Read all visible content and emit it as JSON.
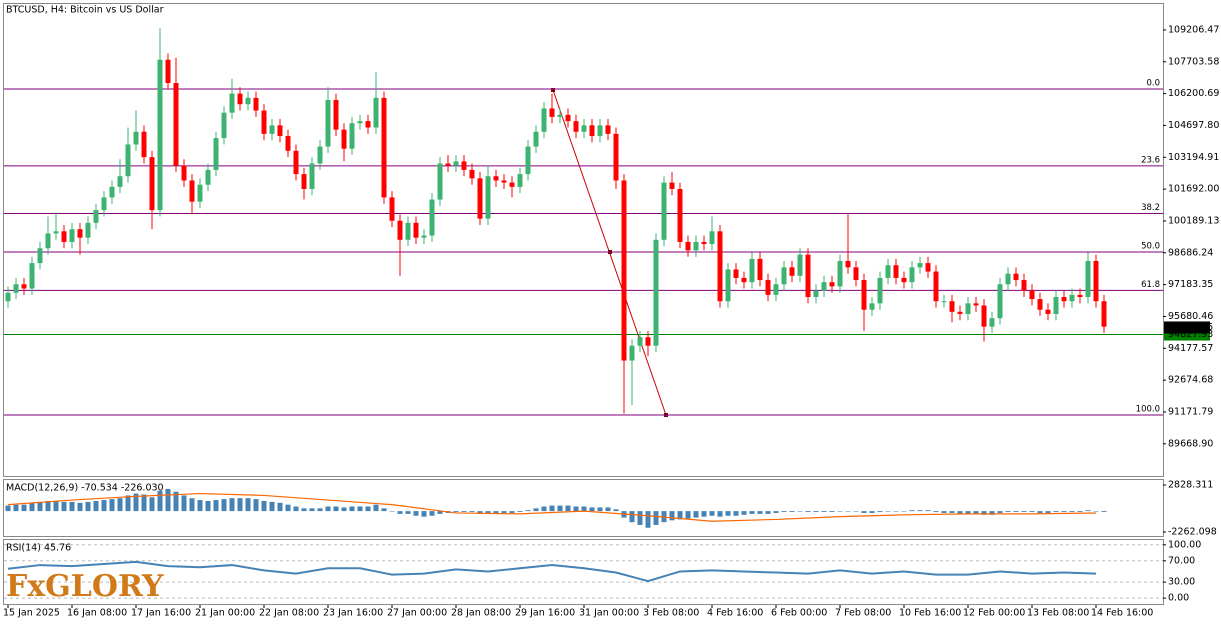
{
  "logo": "FxGLORY",
  "chart_data": [
    {
      "type": "candlestick",
      "title": "BTCUSD, H4:  Bitcoin vs US Dollar",
      "up_color": "#3cb371",
      "down_color": "#ff0000",
      "categories": [
        "15 Jan 2025",
        null,
        null,
        null,
        null,
        null,
        null,
        null,
        "16 Jan 08:00",
        null,
        null,
        null,
        null,
        null,
        null,
        null,
        "17 Jan 16:00",
        null,
        null,
        null,
        null,
        null,
        null,
        null,
        "21 Jan 00:00",
        null,
        null,
        null,
        null,
        null,
        null,
        null,
        "22 Jan 08:00",
        null,
        null,
        null,
        null,
        null,
        null,
        null,
        "23 Jan 16:00",
        null,
        null,
        null,
        null,
        null,
        null,
        null,
        "27 Jan 00:00",
        null,
        null,
        null,
        null,
        null,
        null,
        null,
        "28 Jan 08:00",
        null,
        null,
        null,
        null,
        null,
        null,
        null,
        "29 Jan 16:00",
        null,
        null,
        null,
        null,
        null,
        null,
        null,
        "31 Jan 00:00",
        null,
        null,
        null,
        null,
        null,
        null,
        null,
        "3 Feb 08:00",
        null,
        null,
        null,
        null,
        null,
        null,
        null,
        "4 Feb 16:00",
        null,
        null,
        null,
        null,
        null,
        null,
        null,
        "6 Feb 00:00",
        null,
        null,
        null,
        null,
        null,
        null,
        null,
        "7 Feb 08:00",
        null,
        null,
        null,
        null,
        null,
        null,
        null,
        "10 Feb 16:00",
        null,
        null,
        null,
        null,
        null,
        null,
        null,
        "12 Feb 00:00",
        null,
        null,
        null,
        null,
        null,
        null,
        null,
        "13 Feb 08:00",
        null,
        null,
        null,
        null,
        null,
        null,
        null,
        "14 Feb 16:00",
        null
      ],
      "open": [
        96400,
        96800,
        97200,
        97000,
        98200,
        98900,
        99600,
        99700,
        99200,
        99800,
        99400,
        100100,
        100700,
        101300,
        101800,
        102300,
        103800,
        104400,
        103200,
        100700,
        107800,
        106700,
        102800,
        102100,
        101100,
        101900,
        102600,
        104100,
        105300,
        106200,
        105700,
        106000,
        105400,
        104300,
        104700,
        104200,
        103500,
        102400,
        101700,
        102900,
        103700,
        105900,
        104500,
        103600,
        104800,
        104900,
        104600,
        106000,
        101300,
        100200,
        99300,
        100100,
        99400,
        99500,
        101200,
        102900,
        102800,
        103000,
        102600,
        102200,
        100300,
        102300,
        102100,
        102000,
        101800,
        102400,
        103700,
        104400,
        105500,
        105100,
        105200,
        104900,
        104400,
        104700,
        104200,
        104700,
        104300,
        102100,
        93600,
        94300,
        94700,
        94300,
        99300,
        102000,
        101700,
        99200,
        98800,
        99200,
        99100,
        99700,
        96400,
        97900,
        97500,
        97300,
        98400,
        97400,
        96700,
        97200,
        98000,
        97600,
        98600,
        96600,
        96900,
        97300,
        97100,
        98300,
        98000,
        97400,
        96000,
        96300,
        97500,
        98100,
        97500,
        97300,
        98000,
        98200,
        97800,
        96400,
        96400,
        95900,
        95800,
        96300,
        96200,
        95200,
        95600,
        97200,
        97700,
        97400,
        96900,
        96500,
        96000,
        95800,
        96600,
        96400,
        96700,
        96600,
        98300,
        96400
      ],
      "high": [
        97100,
        97500,
        97500,
        98500,
        99200,
        100400,
        100600,
        100000,
        100100,
        100100,
        100400,
        101000,
        101600,
        102100,
        103100,
        104600,
        105400,
        104700,
        103500,
        109300,
        108100,
        107900,
        103100,
        102400,
        102200,
        102900,
        104400,
        105600,
        106900,
        106500,
        106300,
        106300,
        105700,
        105000,
        105000,
        104500,
        103800,
        102700,
        103200,
        104000,
        106500,
        106200,
        104800,
        105100,
        105200,
        105200,
        107200,
        106300,
        101600,
        100500,
        100400,
        100400,
        99800,
        101500,
        103200,
        103300,
        103300,
        103300,
        102900,
        102500,
        102800,
        102600,
        102400,
        102300,
        102700,
        104000,
        104700,
        105800,
        106200,
        105500,
        105500,
        105200,
        105000,
        105000,
        105000,
        105000,
        104600,
        102400,
        94600,
        95000,
        95000,
        99600,
        102300,
        102500,
        102000,
        99500,
        99500,
        99500,
        100400,
        100000,
        98200,
        98200,
        97800,
        98700,
        98700,
        97700,
        97500,
        98300,
        98300,
        98900,
        98900,
        97200,
        97600,
        97600,
        98600,
        100500,
        98300,
        97700,
        96600,
        97800,
        98400,
        98400,
        97800,
        98300,
        98500,
        98500,
        98100,
        96700,
        96700,
        96200,
        96600,
        96600,
        96500,
        95900,
        97500,
        98000,
        98000,
        97700,
        97200,
        96800,
        96300,
        96900,
        96900,
        97000,
        97000,
        98700,
        98600,
        96700
      ],
      "low": [
        96100,
        96500,
        96700,
        96700,
        97900,
        98600,
        99300,
        98900,
        98900,
        98600,
        99100,
        99800,
        100400,
        101000,
        101500,
        102000,
        103500,
        102900,
        99800,
        100400,
        106400,
        102500,
        101800,
        100500,
        100800,
        101600,
        102300,
        103800,
        105000,
        105400,
        105400,
        105100,
        104000,
        104000,
        103900,
        103200,
        102100,
        101200,
        101400,
        102600,
        103400,
        104200,
        103000,
        103300,
        104500,
        104300,
        104300,
        101000,
        99900,
        97600,
        99000,
        99100,
        99100,
        99200,
        100900,
        102500,
        102500,
        102300,
        101900,
        100000,
        100000,
        101800,
        101700,
        101300,
        101500,
        102100,
        103400,
        104100,
        104800,
        104800,
        104600,
        104100,
        104100,
        103900,
        103900,
        104000,
        101700,
        91100,
        91500,
        94000,
        93800,
        94000,
        99000,
        101400,
        98900,
        98500,
        98500,
        98800,
        98800,
        96100,
        96100,
        97200,
        97000,
        97000,
        97100,
        96400,
        96400,
        96900,
        97300,
        97300,
        96300,
        96300,
        96600,
        96800,
        96800,
        97700,
        97100,
        95000,
        95700,
        96000,
        97200,
        97200,
        97000,
        97000,
        97700,
        97500,
        96100,
        96100,
        95400,
        95500,
        95500,
        95900,
        94500,
        94900,
        95300,
        96900,
        97100,
        96600,
        96200,
        95700,
        95500,
        95500,
        96100,
        96100,
        96300,
        96300,
        96100,
        94900
      ],
      "close": [
        96800,
        97200,
        97000,
        98200,
        98900,
        99600,
        99700,
        99200,
        99800,
        99400,
        100100,
        100700,
        101300,
        101800,
        102300,
        103800,
        104400,
        103200,
        100700,
        107800,
        106700,
        102800,
        102100,
        101100,
        101900,
        102600,
        104100,
        105300,
        106200,
        105700,
        106000,
        105400,
        104300,
        104700,
        104200,
        103500,
        102400,
        101700,
        102900,
        103700,
        105900,
        104500,
        103600,
        104800,
        104900,
        104600,
        106000,
        101300,
        100200,
        99300,
        100100,
        99400,
        99500,
        101200,
        102900,
        102800,
        103000,
        102600,
        102200,
        100300,
        102300,
        102100,
        102000,
        101800,
        102400,
        103700,
        104400,
        105500,
        105100,
        105200,
        104900,
        104400,
        104700,
        104200,
        104700,
        104300,
        102100,
        93600,
        94300,
        94700,
        94300,
        99300,
        102000,
        101700,
        99200,
        98800,
        99200,
        99100,
        99700,
        96400,
        97900,
        97500,
        97300,
        98400,
        97400,
        96700,
        97200,
        98000,
        97600,
        98600,
        96600,
        96900,
        97300,
        97100,
        98300,
        98000,
        97400,
        96000,
        96300,
        97500,
        98100,
        97500,
        97300,
        98000,
        98200,
        97800,
        96400,
        96400,
        95900,
        95800,
        96300,
        96200,
        95200,
        95600,
        97200,
        97700,
        97400,
        96900,
        96500,
        96000,
        95800,
        96600,
        96400,
        96700,
        96600,
        98300,
        96400,
        95200
      ],
      "ylim": [
        88150,
        110430
      ],
      "yticks": [
        {
          "value": 109206.47,
          "label": "109206.47"
        },
        {
          "value": 107703.58,
          "label": "107703.58"
        },
        {
          "value": 106200.69,
          "label": "106200.69"
        },
        {
          "value": 104697.8,
          "label": "104697.80"
        },
        {
          "value": 103194.91,
          "label": "103194.91"
        },
        {
          "value": 101692,
          "label": "101692.00"
        },
        {
          "value": 100189.13,
          "label": "100189.13"
        },
        {
          "value": 98686.24,
          "label": "98686.24"
        },
        {
          "value": 97183.35,
          "label": "97183.35"
        },
        {
          "value": 95680.46,
          "label": "95680.46"
        },
        {
          "value": 94177.57,
          "label": "94177.57"
        },
        {
          "value": 92674.68,
          "label": "92674.68"
        },
        {
          "value": 91171.79,
          "label": "91171.79"
        },
        {
          "value": 89668.9,
          "label": "89668.90"
        }
      ],
      "fib_color": "#800080",
      "fib_levels": [
        {
          "value": 106420,
          "label": "0.0"
        },
        {
          "value": 102790,
          "label": "23.6"
        },
        {
          "value": 100540,
          "label": "38.2"
        },
        {
          "value": 98725,
          "label": "50.0"
        },
        {
          "value": 96910,
          "label": "61.8"
        },
        {
          "value": 91030,
          "label": "100.0"
        }
      ],
      "support_line": {
        "value": 94827.93,
        "color": "#008000"
      },
      "last_price": 95160.95
    },
    {
      "type": "macd",
      "title": "MACD(12,26,9) -70.534 -226.030",
      "histogram": {
        "color": "#4682b4",
        "values": [
          600,
          700,
          700,
          900,
          1000,
          1100,
          1100,
          1000,
          1000,
          900,
          1000,
          1100,
          1200,
          1300,
          1400,
          1700,
          1900,
          1800,
          1500,
          2200,
          2400,
          2100,
          1700,
          1400,
          1200,
          1100,
          1200,
          1300,
          1400,
          1400,
          1400,
          1300,
          1100,
          1000,
          900,
          700,
          500,
          300,
          300,
          300,
          500,
          500,
          400,
          500,
          500,
          500,
          700,
          300,
          0,
          -300,
          -300,
          -500,
          -600,
          -500,
          -300,
          -200,
          -100,
          -100,
          -100,
          -300,
          -200,
          -200,
          -200,
          -200,
          -100,
          100,
          300,
          500,
          600,
          600,
          600,
          500,
          500,
          400,
          400,
          400,
          200,
          -700,
          -1200,
          -1500,
          -1800,
          -1500,
          -1200,
          -1000,
          -900,
          -800,
          -700,
          -600,
          -500,
          -600,
          -500,
          -500,
          -400,
          -300,
          -300,
          -300,
          -200,
          -100,
          -100,
          0,
          -100,
          -100,
          -100,
          -100,
          0,
          0,
          0,
          -200,
          -200,
          -100,
          0,
          0,
          0,
          100,
          100,
          100,
          -100,
          -200,
          -200,
          -300,
          -300,
          -300,
          -400,
          -400,
          -200,
          -100,
          -100,
          -100,
          -100,
          -200,
          -200,
          -100,
          -100,
          -100,
          -100,
          100,
          0,
          -100
        ]
      },
      "signal": {
        "color": "#ff6600",
        "x": [
          0,
          8,
          16,
          24,
          32,
          40,
          48,
          56,
          64,
          72,
          80,
          88,
          96,
          104,
          112,
          120,
          128,
          136
        ],
        "values": [
          700,
          1200,
          1600,
          1900,
          1700,
          1200,
          700,
          -200,
          -300,
          0,
          -500,
          -1100,
          -900,
          -600,
          -400,
          -300,
          -300,
          -200
        ]
      },
      "ylim": [
        -2695,
        3370
      ],
      "yticks": [
        2828.311,
        -2262.098
      ]
    },
    {
      "type": "rsi",
      "title": "RSI(14) 45.76",
      "color": "#4682b4",
      "x": [
        0,
        4,
        8,
        12,
        16,
        20,
        24,
        28,
        32,
        36,
        40,
        44,
        48,
        52,
        56,
        60,
        64,
        68,
        72,
        76,
        80,
        84,
        88,
        92,
        96,
        100,
        104,
        108,
        112,
        116,
        120,
        124,
        128,
        132,
        136
      ],
      "values": [
        55,
        62,
        60,
        64,
        68,
        60,
        58,
        62,
        52,
        46,
        56,
        56,
        44,
        46,
        54,
        50,
        56,
        62,
        56,
        48,
        32,
        50,
        52,
        50,
        48,
        46,
        52,
        46,
        50,
        44,
        44,
        50,
        46,
        48,
        46
      ],
      "ylim": [
        -11,
        109
      ],
      "yticks": [
        {
          "value": 100,
          "label": "100.00"
        },
        {
          "value": 70,
          "label": "70.00"
        },
        {
          "value": 30,
          "label": "30.00"
        },
        {
          "value": 0,
          "label": "0.00"
        }
      ],
      "grid": true
    }
  ]
}
